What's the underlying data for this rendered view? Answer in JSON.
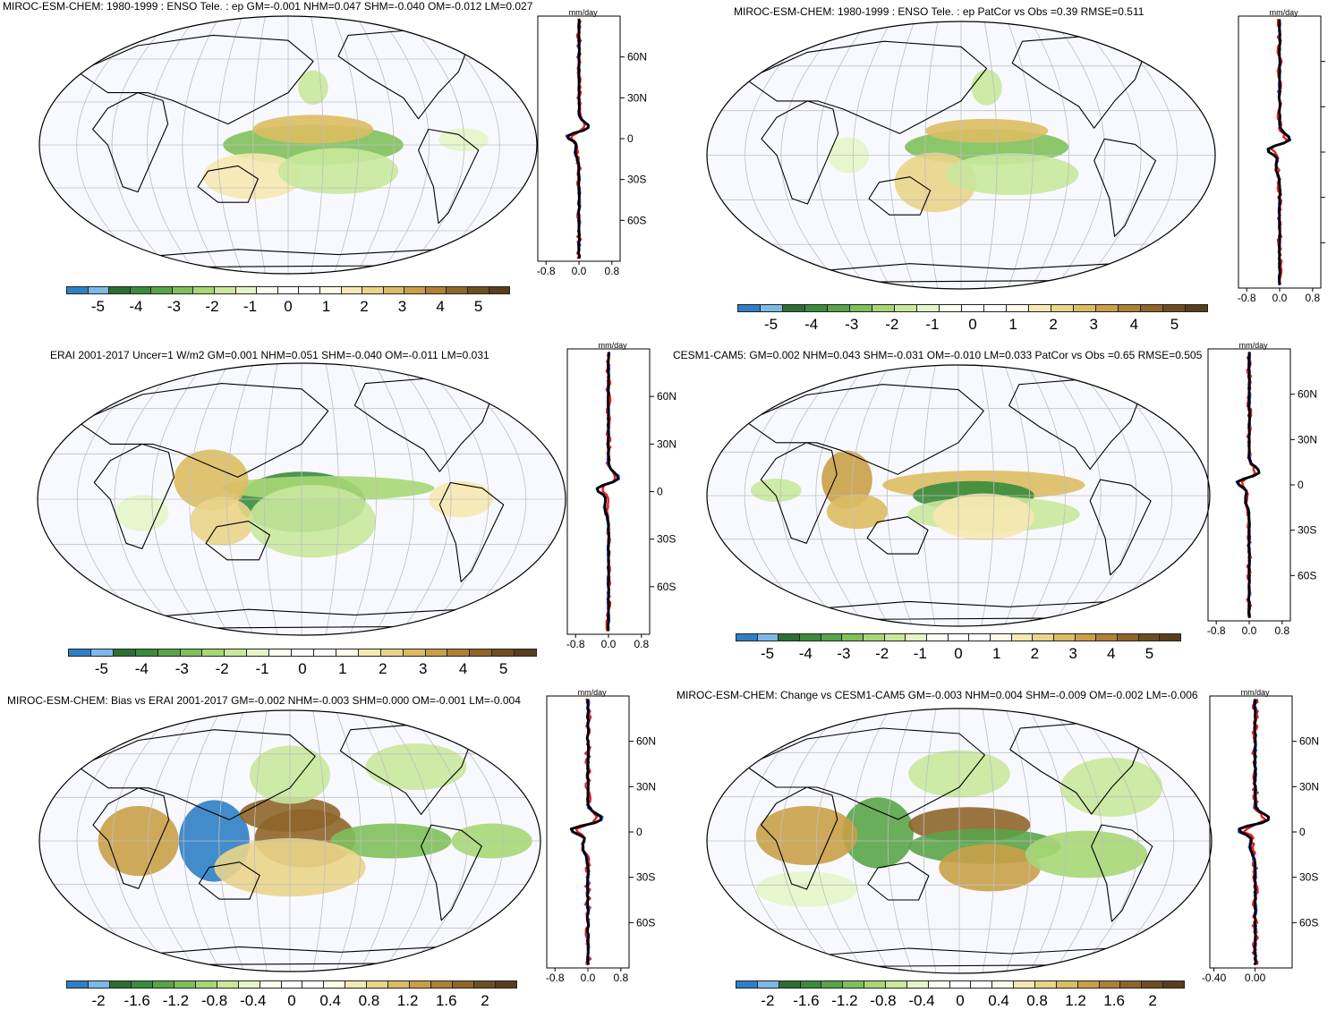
{
  "colors": {
    "brown_scale": [
      "#fffbe9",
      "#f6e8b1",
      "#ead48a",
      "#dcbc62",
      "#c9a048",
      "#ae8136",
      "#8f652a",
      "#6f4d22"
    ],
    "green_scale": [
      "#fafff0",
      "#e4f5c8",
      "#c8e89c",
      "#a6d774",
      "#7fc05a",
      "#5aa448",
      "#3a8b3c",
      "#2d6f32"
    ],
    "blue1": "#2f7fc7",
    "blue2": "#7eb8e8",
    "model_line": "#1f3fd8",
    "obs_line": "#e61e1e",
    "mean_line": "#000000"
  },
  "palette_main": [
    "#2f7fc7",
    "#7eb8e8",
    "#2d6f32",
    "#3a8b3c",
    "#5aa448",
    "#7fc05a",
    "#a6d774",
    "#c8e89c",
    "#e4f5c8",
    "#fafff0",
    "#ffffff",
    "#ffffff",
    "#fffbe9",
    "#f6e8b1",
    "#ead48a",
    "#dcbc62",
    "#c9a048",
    "#ae8136",
    "#8f652a",
    "#6f4d22",
    "#5a3e1b"
  ],
  "panels": [
    {
      "title": "MIROC-ESM-CHEM: 1980-1999 : ENSO Tele. : ep GM=-0.001 NHM=0.047 SHM=-0.040 OM=-0.012 LM=0.027",
      "units": "mm/day",
      "lat_labels": [
        "60N",
        "30N",
        "0",
        "30S",
        "60S"
      ],
      "x_ticks": [
        "-0.8",
        "0.0",
        "0.8"
      ],
      "colorbar_labels": [
        "-5",
        "-4",
        "-3",
        "-2",
        "-1",
        "0",
        "1",
        "2",
        "3",
        "4",
        "5"
      ]
    },
    {
      "title": "MIROC-ESM-CHEM: 1980-1999 : ENSO Tele. : ep PatCor vs Obs =0.39 RMSE=0.511",
      "units": "mm/day",
      "lat_labels": [],
      "x_ticks": [
        "-0.8",
        "0.0",
        "0.8"
      ],
      "colorbar_labels": [
        "-5",
        "-4",
        "-3",
        "-2",
        "-1",
        "0",
        "1",
        "2",
        "3",
        "4",
        "5"
      ]
    },
    {
      "title": "ERAI 2001-2017 Uncer=1 W/m2 GM=0.001 NHM=0.051 SHM=-0.040 OM=-0.011 LM=0.031",
      "units": "mm/day",
      "lat_labels": [
        "60N",
        "30N",
        "0",
        "30S",
        "60S"
      ],
      "x_ticks": [
        "-0.8",
        "0.0",
        "0.8"
      ],
      "colorbar_labels": [
        "-5",
        "-4",
        "-3",
        "-2",
        "-1",
        "0",
        "1",
        "2",
        "3",
        "4",
        "5"
      ]
    },
    {
      "title": "CESM1-CAM5: GM=0.002 NHM=0.043 SHM=-0.031 OM=-0.010 LM=0.033 PatCor vs Obs =0.65 RMSE=0.505",
      "units": "mm/day",
      "lat_labels": [
        "60N",
        "30N",
        "0",
        "30S",
        "60S"
      ],
      "x_ticks": [
        "-0.8",
        "0.0",
        "0.8"
      ],
      "colorbar_labels": [
        "-5",
        "-4",
        "-3",
        "-2",
        "-1",
        "0",
        "1",
        "2",
        "3",
        "4",
        "5"
      ]
    },
    {
      "title": "MIROC-ESM-CHEM: Bias vs ERAI 2001-2017 GM=-0.002 NHM=-0.003 SHM=0.000 OM=-0.001 LM=-0.004",
      "units": "mm/day",
      "lat_labels": [
        "60N",
        "30N",
        "0",
        "30S",
        "60S"
      ],
      "x_ticks": [
        "-0.8",
        "0.0",
        "0.8"
      ],
      "colorbar_labels": [
        "-2",
        "-1.6",
        "-1.2",
        "-0.8",
        "-0.4",
        "0",
        "0.4",
        "0.8",
        "1.2",
        "1.6",
        "2"
      ]
    },
    {
      "title": "MIROC-ESM-CHEM: Change vs CESM1-CAM5 GM=-0.003 NHM=0.004 SHM=-0.009 OM=-0.002 LM=-0.006",
      "units": "mm/day",
      "lat_labels": [
        "60N",
        "30N",
        "0",
        "30S",
        "60S"
      ],
      "x_ticks": [
        "-0.40",
        "0.00"
      ],
      "colorbar_labels": [
        "-2",
        "-1.6",
        "-1.2",
        "-0.8",
        "-0.4",
        "0",
        "0.4",
        "0.8",
        "1.2",
        "1.6",
        "2"
      ]
    }
  ]
}
